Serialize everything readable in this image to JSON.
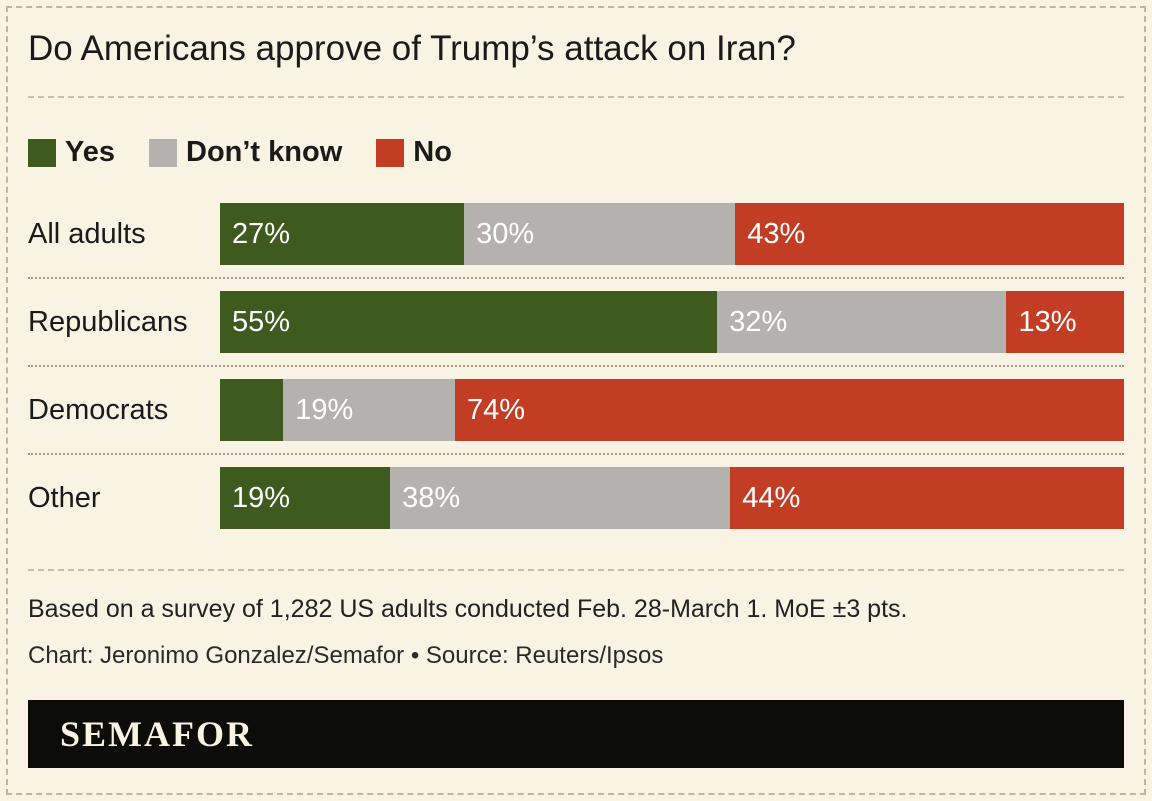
{
  "chart_data": {
    "type": "bar",
    "variant": "stacked-horizontal",
    "title": "Do Americans approve of Trump’s attack on Iran?",
    "categories": [
      "All adults",
      "Republicans",
      "Democrats",
      "Other"
    ],
    "series": [
      {
        "name": "Yes",
        "color": "#3e5a1e",
        "values": [
          27,
          55,
          7,
          19
        ],
        "labels": [
          "27%",
          "55%",
          "",
          "19%"
        ]
      },
      {
        "name": "Don’t know",
        "color": "#b3b2ae",
        "values": [
          30,
          32,
          19,
          38
        ],
        "labels": [
          "30%",
          "32%",
          "19%",
          "38%"
        ]
      },
      {
        "name": "No",
        "color": "#c33d24",
        "values": [
          43,
          13,
          74,
          44
        ],
        "labels": [
          "43%",
          "13%",
          "74%",
          "44%"
        ]
      }
    ],
    "xlim": [
      0,
      100
    ],
    "legend_position": "top",
    "grid": false,
    "note": "Based on a survey of 1,282 US adults conducted Feb. 28-March 1. MoE ±3 pts.",
    "credit": "Chart: Jeronimo Gonzalez/Semafor • Source: Reuters/Ipsos"
  },
  "footer": {
    "brand": "SEMAFOR"
  }
}
